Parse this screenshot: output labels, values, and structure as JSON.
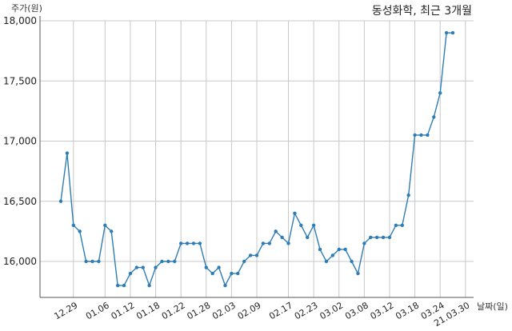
{
  "title": "동성화학, 최근 3개월",
  "ylabel": "주가(원)",
  "xlabel": "날짜(일)",
  "colors": {
    "line": "#2f7db5",
    "grid": "#c8c8c8",
    "axis": "#555555"
  },
  "chart_data": {
    "type": "line",
    "title": "동성화학, 최근 3개월",
    "xlabel": "날짜(일)",
    "ylabel": "주가(원)",
    "ylim": [
      15700,
      18000
    ],
    "yticks": [
      16000,
      16500,
      17000,
      17500,
      18000
    ],
    "ytick_labels": [
      "16,000",
      "16,500",
      "17,000",
      "17,500",
      "18,000"
    ],
    "grid": true,
    "xtick_labels": [
      "12.29",
      "01.06",
      "01.12",
      "01.18",
      "01.22",
      "01.28",
      "02.03",
      "02.09",
      "02.17",
      "02.23",
      "03.02",
      "03.08",
      "03.12",
      "03.18",
      "03.24",
      "21.03.30"
    ],
    "xtick_index": [
      2,
      7,
      11,
      15,
      19,
      23,
      27,
      31,
      36,
      40,
      44,
      48,
      52,
      56,
      60,
      64
    ],
    "series": [
      {
        "values": [
          16500,
          16900,
          16300,
          16250,
          16000,
          16000,
          16000,
          16300,
          16250,
          15800,
          15800,
          15900,
          15950,
          15950,
          15800,
          15950,
          16000,
          16000,
          16000,
          16150,
          16150,
          16150,
          16150,
          15950,
          15900,
          15950,
          15800,
          15900,
          15900,
          16000,
          16050,
          16050,
          16150,
          16150,
          16250,
          16200,
          16150,
          16400,
          16300,
          16200,
          16300,
          16100,
          16000,
          16050,
          16100,
          16100,
          16000,
          15900,
          16150,
          16200,
          16200,
          16200,
          16200,
          16300,
          16300,
          16550,
          17050,
          17050,
          17050,
          17200,
          17400,
          17900,
          17900
        ]
      }
    ]
  }
}
